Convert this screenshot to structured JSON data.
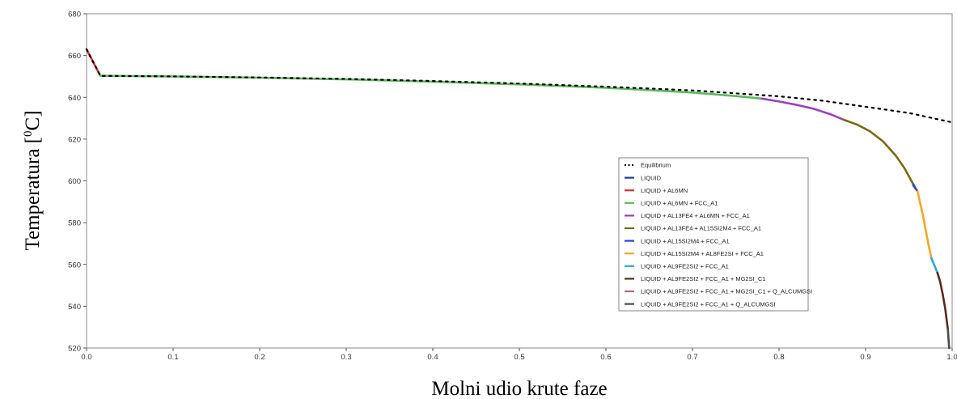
{
  "chart_data": {
    "type": "line",
    "xlabel": "Molni udio krute faze",
    "ylabel_main": "Temperatura [",
    "ylabel_sup": "0",
    "ylabel_end": "C]",
    "xlim": [
      0,
      1
    ],
    "ylim": [
      520,
      680
    ],
    "x_ticks": [
      "0.0",
      "0.1",
      "0.2",
      "0.3",
      "0.4",
      "0.5",
      "0.6",
      "0.7",
      "0.8",
      "0.9",
      "1.0"
    ],
    "y_ticks": [
      "520",
      "540",
      "560",
      "580",
      "600",
      "620",
      "640",
      "660",
      "680"
    ],
    "grid": false,
    "legend_position": "center-right",
    "series": [
      {
        "name": "Equilibrium",
        "color": "#000000",
        "dashed": true,
        "x": [
          0.0,
          0.016,
          0.1,
          0.2,
          0.3,
          0.4,
          0.5,
          0.6,
          0.7,
          0.8,
          0.85,
          0.9,
          0.95,
          1.0
        ],
        "y": [
          663,
          650.3,
          650,
          649.5,
          648.8,
          647.8,
          646.6,
          645.1,
          643.3,
          640.5,
          638.4,
          635.5,
          632.5,
          628
        ]
      },
      {
        "name": "LIQUID",
        "color": "#1f3f99",
        "x": [],
        "y": []
      },
      {
        "name": "LIQUID + AL6MN",
        "color": "#e03030",
        "x": [
          0.0,
          0.016
        ],
        "y": [
          663,
          650.3
        ]
      },
      {
        "name": "LIQUID + AL6MN + FCC_A1",
        "color": "#5cb85c",
        "x": [
          0.016,
          0.1,
          0.2,
          0.3,
          0.4,
          0.5,
          0.6,
          0.7,
          0.75,
          0.78
        ],
        "y": [
          650.3,
          650,
          649.4,
          648.6,
          647.5,
          646.2,
          644.6,
          642.3,
          640.6,
          639.4
        ]
      },
      {
        "name": "LIQUID + AL13FE4 + AL6MN + FCC_A1",
        "color": "#9b3fbf",
        "x": [
          0.78,
          0.8,
          0.82,
          0.84,
          0.86,
          0.875
        ],
        "y": [
          639.4,
          638,
          636.4,
          634.5,
          631.8,
          629.2
        ]
      },
      {
        "name": "LIQUID + AL13FE4 + AL15SI2M4 + FCC_A1",
        "color": "#7a6a10",
        "x": [
          0.875,
          0.89,
          0.905,
          0.92,
          0.935,
          0.945,
          0.953,
          0.957
        ],
        "y": [
          629.2,
          627,
          623.8,
          619,
          612,
          606,
          600,
          597
        ]
      },
      {
        "name": "LIQUID + AL15SI2M4 + FCC_A1",
        "color": "#2346d8",
        "x": [
          0.955,
          0.96
        ],
        "y": [
          598,
          595
        ]
      },
      {
        "name": "LIQUID + AL15SI2M4 + AL8FE2SI + FCC_A1",
        "color": "#f5a623",
        "x": [
          0.96,
          0.966,
          0.972,
          0.976
        ],
        "y": [
          595,
          584,
          571,
          563
        ]
      },
      {
        "name": "LIQUID + AL9FE2SI2 + FCC_A1",
        "color": "#29a9e0",
        "x": [
          0.976,
          0.978,
          0.981,
          0.983
        ],
        "y": [
          563,
          561,
          558,
          556
        ]
      },
      {
        "name": "LIQUID + AL9FE2SI2 + FCC_A1 + MG2SI_C1",
        "color": "#5a2a1a",
        "x": [
          0.983,
          0.986,
          0.989,
          0.992,
          0.995
        ],
        "y": [
          556,
          552,
          546,
          539,
          529
        ]
      },
      {
        "name": "LIQUID + AL9FE2SI2 + FCC_A1 + MG2SI_C1 + Q_ALCUMGSI",
        "color": "#b06a88",
        "x": [],
        "y": []
      },
      {
        "name": "LIQUID + AL9FE2SI2 + FCC_A1 + Q_ALCUMGSI",
        "color": "#4a4a4a",
        "x": [
          0.995,
          0.9965
        ],
        "y": [
          529,
          520
        ]
      }
    ]
  }
}
